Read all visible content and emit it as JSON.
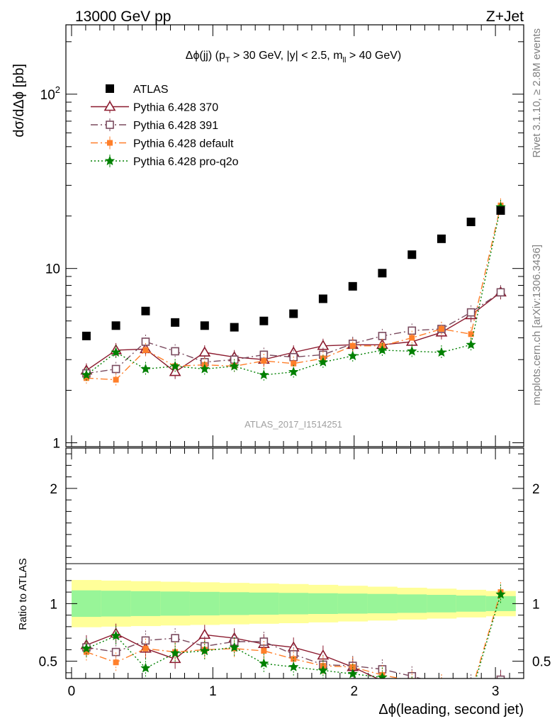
{
  "header": {
    "left": "13000 GeV pp",
    "right": "Z+Jet"
  },
  "side_labels": {
    "rivet": "Rivet 3.1.10, ≥ 2.8M events",
    "mcplots": "mcplots.cern.ch [arXiv:1306.3436]"
  },
  "chart_data": {
    "type": "scatter",
    "title": "Δϕ(jj) (p_T > 30 GeV, |y| < 2.5, m_ll > 40 GeV)",
    "title_parts": {
      "a": "Δϕ(jj) (p",
      "a_sub": "T",
      "b": " > 30 GeV, |y| < 2.5, m",
      "b_sub": "ll",
      "c": " > 40 GeV)"
    },
    "watermark": "ATLAS_2017_I1514251",
    "xlabel": "Δϕ(leading, second jet)",
    "ylabel_main": "dσ/dΔϕ [pb]",
    "ylabel_ratio": "Ratio to ATLAS",
    "xlim": [
      -0.04,
      3.2
    ],
    "ylim_main": [
      0.95,
      250
    ],
    "yscale_main": "log",
    "ylim_ratio": [
      0.35,
      2.35
    ],
    "grid": false,
    "legend_position": "top-left",
    "x_ticks": [
      "0",
      "1",
      "2",
      "3"
    ],
    "y_ticks_main": [
      "1",
      "10",
      "10^2"
    ],
    "y_ticks_ratio": [
      "0.5",
      "1",
      "2"
    ],
    "x": [
      0.105,
      0.314,
      0.524,
      0.733,
      0.942,
      1.152,
      1.361,
      1.571,
      1.78,
      1.99,
      2.199,
      2.409,
      2.618,
      2.827,
      3.037
    ],
    "data": {
      "name": "ATLAS",
      "color": "#000000",
      "values": [
        4.1,
        4.7,
        5.7,
        4.9,
        4.7,
        4.6,
        5.0,
        5.5,
        6.7,
        7.9,
        9.4,
        12.0,
        14.8,
        18.5,
        21.5
      ]
    },
    "bands": {
      "inner_color": "#98f598",
      "outer_color": "#ffff99",
      "inner_half_width": [
        0.115,
        0.112,
        0.108,
        0.105,
        0.102,
        0.099,
        0.096,
        0.093,
        0.09,
        0.087,
        0.084,
        0.08,
        0.076,
        0.07,
        0.065
      ],
      "outer_half_width": [
        0.205,
        0.2,
        0.195,
        0.19,
        0.185,
        0.18,
        0.175,
        0.17,
        0.163,
        0.155,
        0.147,
        0.138,
        0.13,
        0.12,
        0.11
      ]
    },
    "series": [
      {
        "name": "Pythia 6.428 370",
        "color": "#8b1a2e",
        "marker": "triangle-open",
        "dash": "",
        "values": [
          2.6,
          3.4,
          3.45,
          2.55,
          3.3,
          3.1,
          3.0,
          3.3,
          3.6,
          3.65,
          3.65,
          3.8,
          4.3,
          5.4,
          7.3
        ],
        "ratio": [
          0.64,
          0.74,
          0.61,
          0.52,
          0.73,
          0.7,
          0.65,
          0.62,
          0.55,
          0.45,
          0.33,
          0.25,
          0.2,
          0.25,
          0.33
        ]
      },
      {
        "name": "Pythia 6.428 391",
        "color": "#7a4a5e",
        "marker": "square-open",
        "dash": "10,4,2,4",
        "values": [
          2.5,
          2.65,
          3.8,
          3.35,
          2.9,
          3.0,
          3.2,
          3.1,
          3.2,
          3.7,
          4.1,
          4.4,
          4.5,
          5.6,
          7.3
        ],
        "ratio": [
          0.62,
          0.58,
          0.68,
          0.7,
          0.63,
          0.67,
          0.67,
          0.56,
          0.47,
          0.46,
          0.43,
          0.37,
          0.3,
          0.3,
          0.34
        ]
      },
      {
        "name": "Pythia 6.428 default",
        "color": "#ff7f2a",
        "marker": "square-filled",
        "dash": "10,4,2,4",
        "values": [
          2.35,
          2.3,
          3.4,
          2.75,
          2.8,
          2.75,
          2.95,
          2.85,
          3.05,
          3.6,
          3.6,
          4.0,
          4.5,
          4.2,
          23.0
        ],
        "ratio": [
          0.58,
          0.49,
          0.61,
          0.58,
          0.6,
          0.61,
          0.59,
          0.52,
          0.46,
          0.45,
          0.38,
          0.33,
          0.3,
          0.23,
          1.1
        ]
      },
      {
        "name": "Pythia 6.428 pro-q2o",
        "color": "#008000",
        "marker": "star",
        "dash": "2,3",
        "values": [
          2.45,
          3.3,
          2.65,
          2.75,
          2.65,
          2.75,
          2.45,
          2.55,
          2.9,
          3.15,
          3.4,
          3.35,
          3.3,
          3.65,
          22.5
        ],
        "ratio": [
          0.61,
          0.72,
          0.44,
          0.57,
          0.59,
          0.62,
          0.48,
          0.45,
          0.42,
          0.39,
          0.36,
          0.28,
          0.23,
          0.2,
          1.08
        ]
      }
    ]
  }
}
